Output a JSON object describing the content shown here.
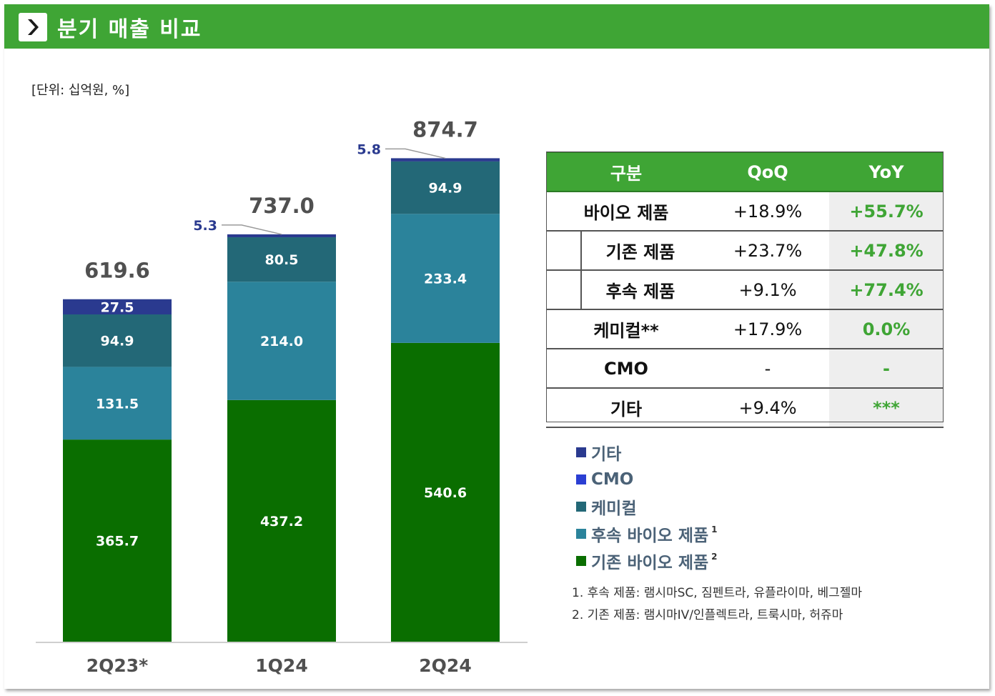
{
  "header": {
    "title": "분기 매출 비교"
  },
  "unit_label": "[단위: 십억원, %]",
  "colors": {
    "header_green": "#3fa535",
    "existing_bio": "#0a6e00",
    "new_bio": "#2b839b",
    "chemical": "#236877",
    "cmo": "#2b3fd3",
    "other": "#2a3a8f",
    "small_label": "#2a3a8f",
    "positive_green": "#3fa535"
  },
  "chart_data": {
    "type": "bar",
    "stacked": true,
    "categories": [
      "2Q23*",
      "1Q24",
      "2Q24"
    ],
    "series": [
      {
        "name": "기존 바이오 제품",
        "values": [
          365.7,
          437.2,
          540.6
        ]
      },
      {
        "name": "후속 바이오 제품",
        "values": [
          131.5,
          214.0,
          233.4
        ]
      },
      {
        "name": "케미컬",
        "values": [
          94.9,
          80.5,
          94.9
        ]
      },
      {
        "name": "CMO",
        "values": [
          0,
          0,
          0
        ]
      },
      {
        "name": "기타",
        "values": [
          27.5,
          5.3,
          5.8
        ]
      }
    ],
    "value_labels": {
      "기존 바이오 제품": [
        "365.7",
        "437.2",
        "540.6"
      ],
      "후속 바이오 제품": [
        "131.5",
        "214.0",
        "233.4"
      ],
      "케미컬": [
        "94.9",
        "80.5",
        "94.9"
      ],
      "기타": [
        "27.5",
        "5.3",
        "5.8"
      ]
    },
    "totals": [
      "619.6",
      "737.0",
      "874.7"
    ],
    "title": "분기 매출 비교",
    "xlabel": "",
    "ylabel": "",
    "ylim": [
      0,
      1000
    ],
    "legend_position": "right"
  },
  "table": {
    "headers": [
      "구분",
      "QoQ",
      "YoY"
    ],
    "rows": [
      {
        "name": "바이오 제품",
        "qoq": "+18.9%",
        "yoy": "+55.7%",
        "sub": false
      },
      {
        "name": "기존 제품",
        "qoq": "+23.7%",
        "yoy": "+47.8%",
        "sub": true
      },
      {
        "name": "후속 제품",
        "qoq": "+9.1%",
        "yoy": "+77.4%",
        "sub": true
      },
      {
        "name": "케미컬**",
        "qoq": "+17.9%",
        "yoy": "0.0%",
        "sub": false
      },
      {
        "name": "CMO",
        "qoq": "-",
        "yoy": "-",
        "sub": false
      },
      {
        "name": "기타",
        "qoq": "+9.4%",
        "yoy": "***",
        "sub": false
      }
    ]
  },
  "legend": [
    {
      "label": "기타",
      "sup": "",
      "color": "#2a3a8f"
    },
    {
      "label": "CMO",
      "sup": "",
      "color": "#2b3fd3"
    },
    {
      "label": "케미컬",
      "sup": "",
      "color": "#236877"
    },
    {
      "label": "후속 바이오 제품",
      "sup": "1",
      "color": "#2b839b"
    },
    {
      "label": "기존 바이오 제품",
      "sup": "2",
      "color": "#0a6e00"
    }
  ],
  "footnotes": [
    "1. 후속 제품: 램시마SC, 짐펜트라, 유플라이마, 베그젤마",
    "2. 기존 제품: 램시마IV/인플렉트라, 트룩시마, 허쥬마"
  ]
}
